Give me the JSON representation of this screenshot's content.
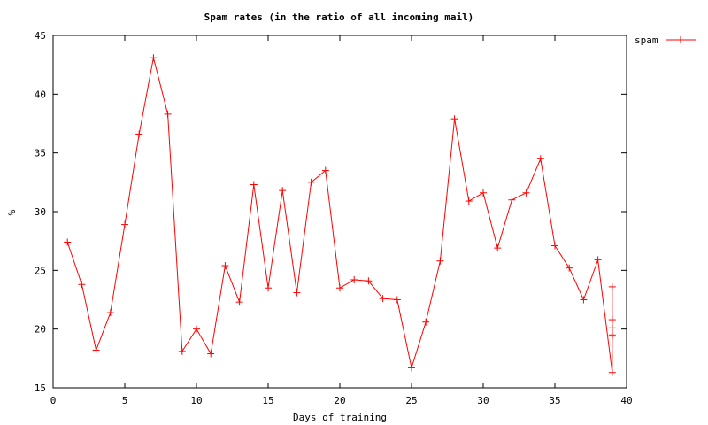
{
  "chart_data": {
    "type": "line",
    "title": "Spam rates (in the ratio of all incoming mail)",
    "xlabel": "Days of training",
    "ylabel": "%",
    "xlim": [
      0,
      40
    ],
    "ylim": [
      15,
      45
    ],
    "xticks": [
      0,
      5,
      10,
      15,
      20,
      25,
      30,
      35,
      40
    ],
    "yticks": [
      15,
      20,
      25,
      30,
      35,
      40,
      45
    ],
    "grid": false,
    "legend_position": "outside-top-right",
    "series": [
      {
        "name": "spam",
        "color": "#ff0000",
        "marker": "plus",
        "x": [
          1,
          2,
          3,
          4,
          5,
          6,
          7,
          8,
          9,
          10,
          11,
          12,
          13,
          14,
          15,
          16,
          17,
          18,
          19,
          20,
          21,
          22,
          23,
          24,
          25,
          26,
          27,
          28,
          29,
          30,
          31,
          32,
          33,
          34,
          35,
          36,
          37,
          38,
          39,
          39,
          39,
          39,
          39,
          39
        ],
        "y": [
          27.4,
          23.8,
          18.2,
          21.4,
          28.9,
          36.6,
          43.1,
          38.3,
          18.1,
          20.0,
          17.9,
          25.4,
          22.3,
          32.3,
          23.5,
          31.8,
          23.1,
          32.5,
          33.5,
          23.5,
          24.2,
          24.1,
          22.6,
          22.5,
          16.7,
          20.6,
          25.8,
          37.9,
          30.9,
          31.6,
          26.9,
          31.0,
          31.6,
          34.5,
          27.1,
          25.2,
          22.5,
          25.9,
          16.3,
          23.6,
          20.8,
          20.1,
          19.5,
          19.4
        ]
      }
    ]
  }
}
